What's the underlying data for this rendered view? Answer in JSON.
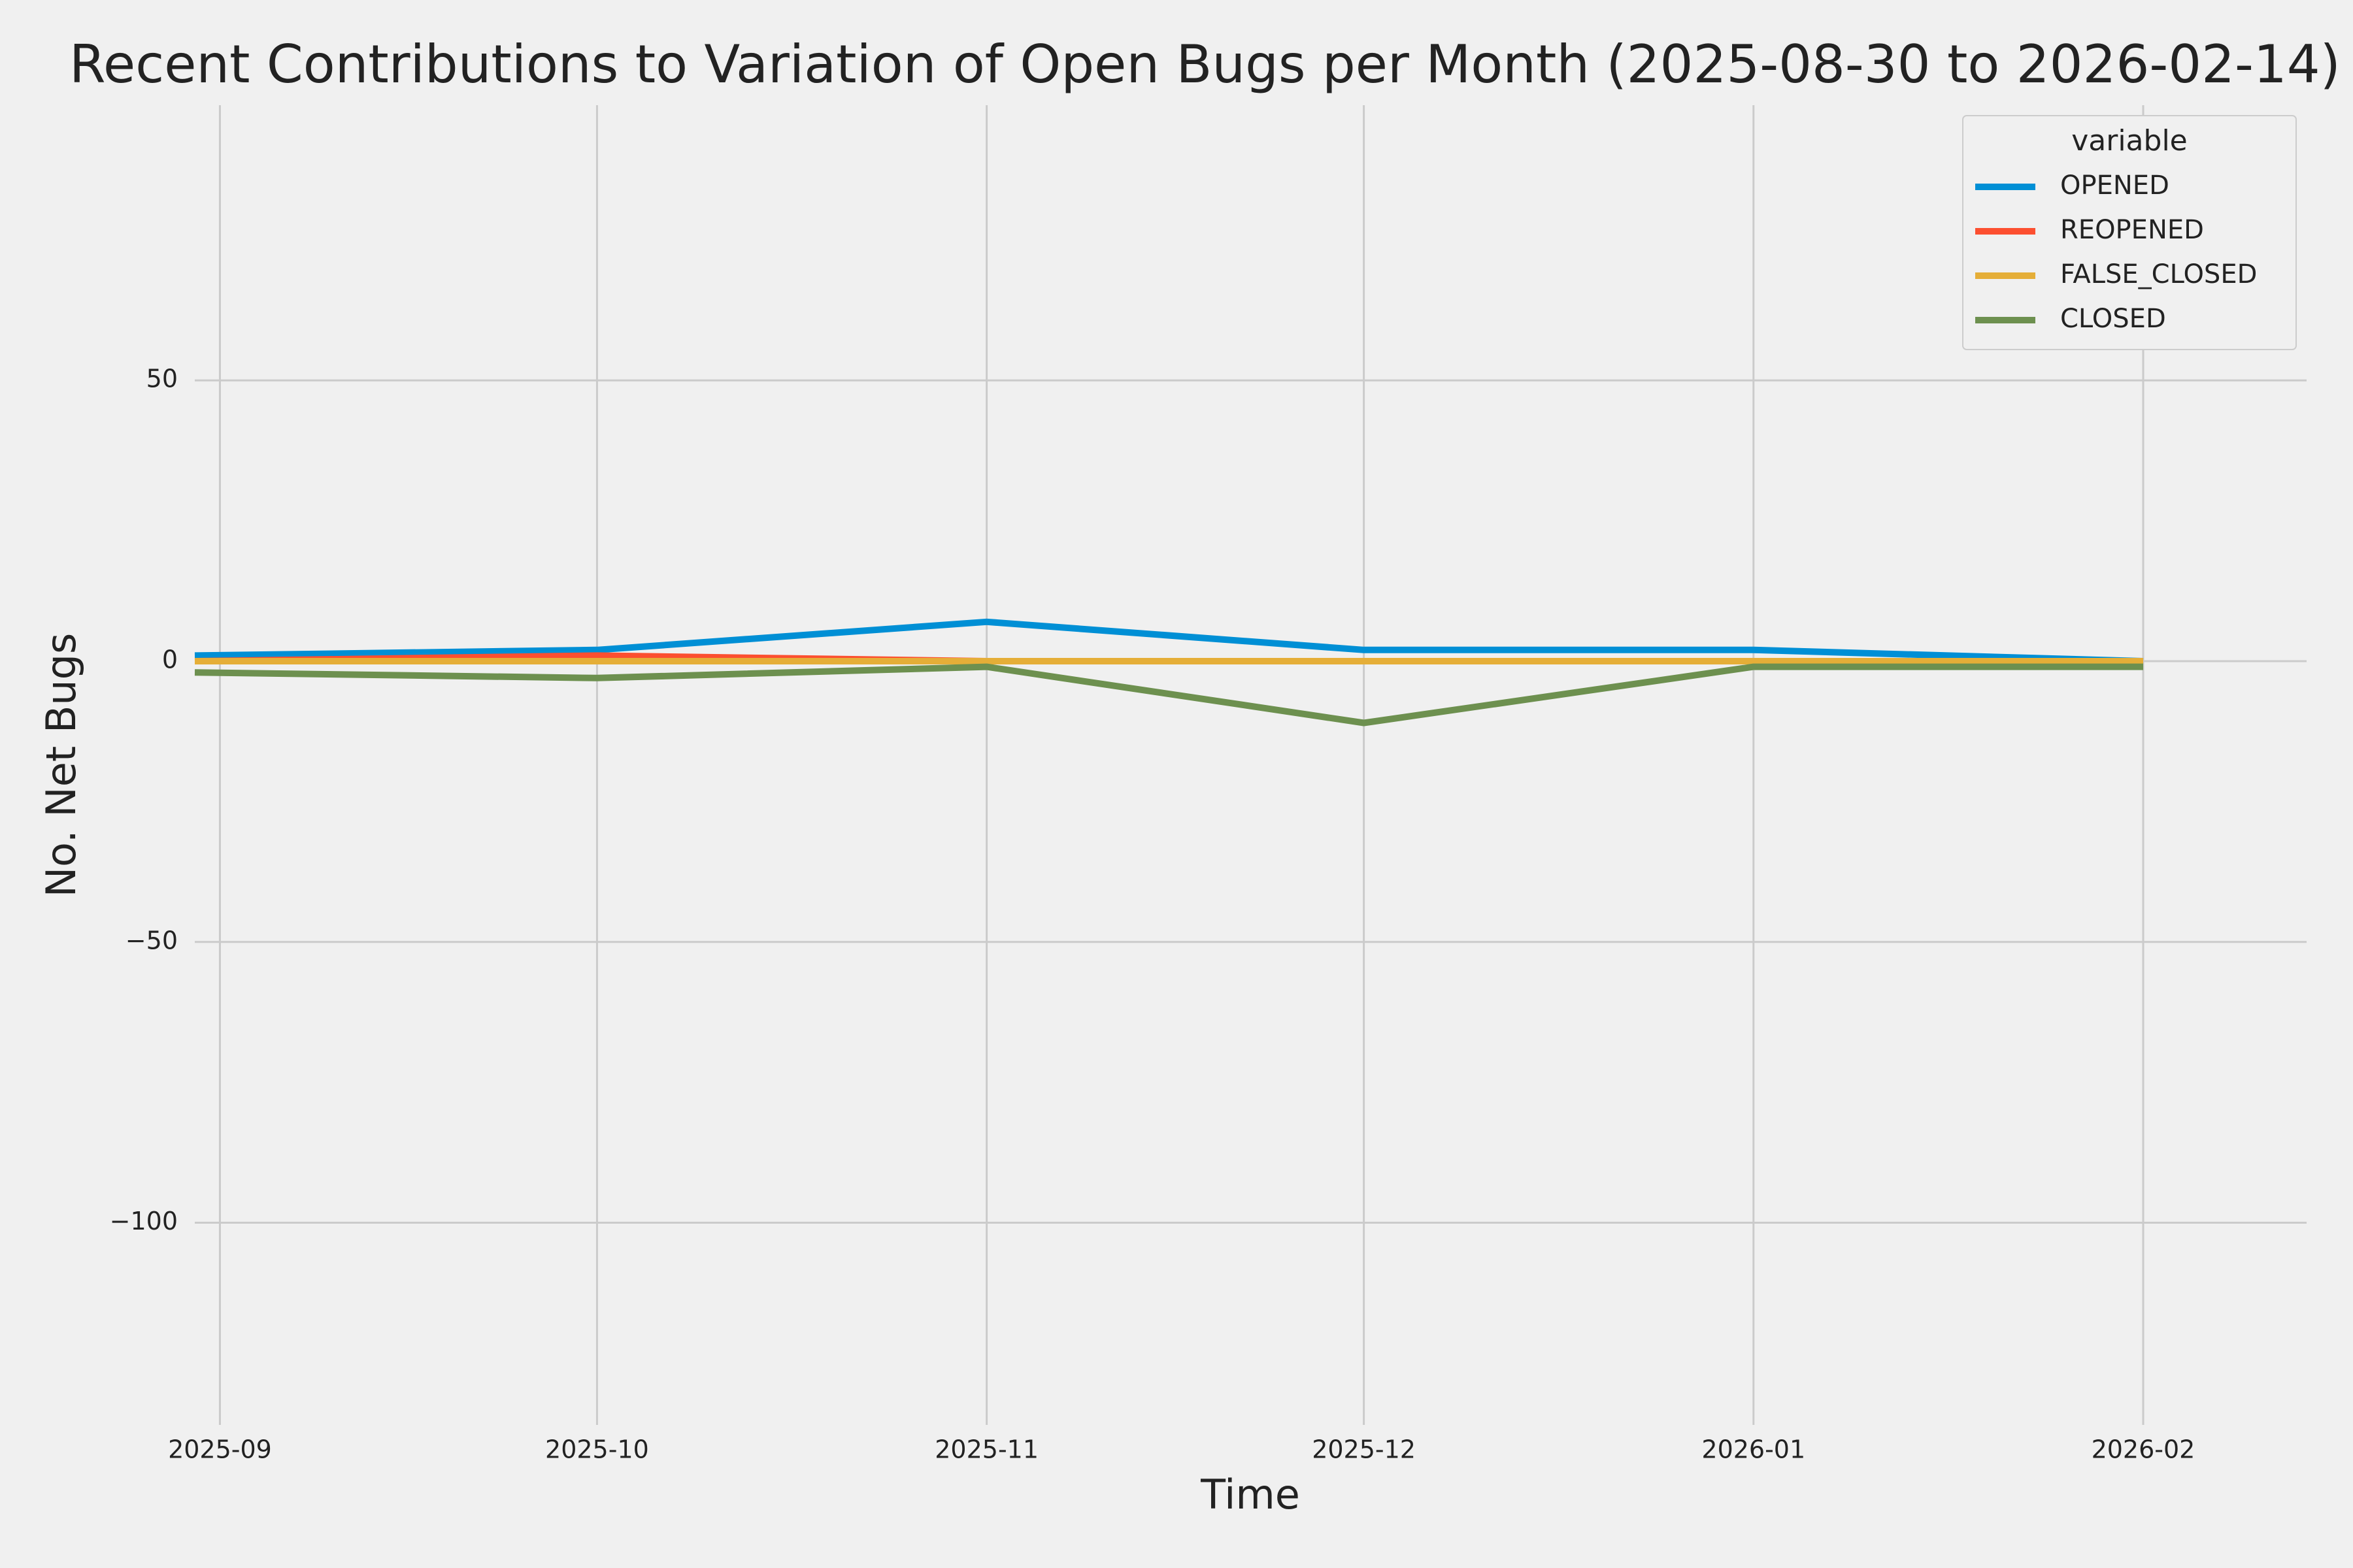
{
  "chart_data": {
    "type": "line",
    "title": "Recent Contributions to Variation of Open Bugs per Month (2025-08-30 to 2026-02-14)",
    "x_label": "Time",
    "y_label": "No. Net Bugs",
    "x": [
      "2025-08-30",
      "2025-10-01",
      "2025-11-01",
      "2025-12-01",
      "2026-01-01",
      "2026-02-01"
    ],
    "series": [
      {
        "name": "OPENED",
        "color": "#008fd5",
        "values": [
          1,
          2,
          7,
          2,
          2,
          0
        ]
      },
      {
        "name": "REOPENED",
        "color": "#fc4f30",
        "values": [
          0,
          1,
          0,
          0,
          0,
          0
        ]
      },
      {
        "name": "FALSE_CLOSED",
        "color": "#e5ae38",
        "values": [
          0,
          0,
          0,
          0,
          0,
          0
        ]
      },
      {
        "name": "CLOSED",
        "color": "#6d904f",
        "values": [
          -2,
          -3,
          -1,
          -11,
          -1,
          -1
        ]
      }
    ],
    "legend_title": "variable",
    "legend_position": "upper right",
    "xlim": [
      "2025-08-30",
      "2026-02-14"
    ],
    "xticks": [
      {
        "value": "2025-09-01",
        "label": "2025-09"
      },
      {
        "value": "2025-10-01",
        "label": "2025-10"
      },
      {
        "value": "2025-11-01",
        "label": "2025-11"
      },
      {
        "value": "2025-12-01",
        "label": "2025-12"
      },
      {
        "value": "2026-01-01",
        "label": "2026-01"
      },
      {
        "value": "2026-02-01",
        "label": "2026-02"
      }
    ],
    "ylim": [
      -136,
      99
    ],
    "yticks": [
      {
        "value": -100,
        "label": "−100"
      },
      {
        "value": -50,
        "label": "−50"
      },
      0,
      50
    ],
    "grid": true
  }
}
